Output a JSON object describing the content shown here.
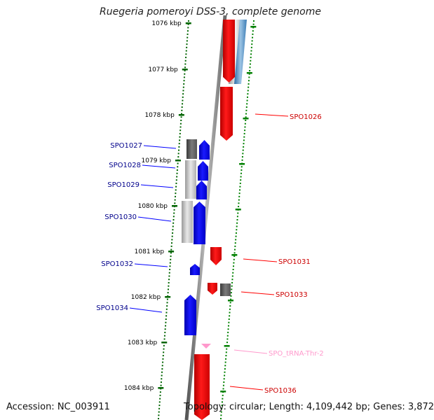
{
  "title": "Ruegeria pomeroyi DSS-3, complete genome",
  "accession": "Accession: NC_003911",
  "summary": "Topology: circular; Length: 4,109,442 bp; Genes: 3,872",
  "colors": {
    "forward_gene": "#0000ff",
    "reverse_gene": "#ff0000",
    "trna": "#ff99cc",
    "forward_label": "#00008b",
    "reverse_label": "#cc0000",
    "trna_label": "#ff99cc",
    "tick_left": "#006400",
    "tick_right": "#008000",
    "backbone": "#808080"
  },
  "ticks": [
    {
      "label": "1076 kbp"
    },
    {
      "label": "1077 kbp"
    },
    {
      "label": "1078 kbp"
    },
    {
      "label": "1079 kbp"
    },
    {
      "label": "1080 kbp"
    },
    {
      "label": "1081 kbp"
    },
    {
      "label": "1082 kbp"
    },
    {
      "label": "1083 kbp"
    },
    {
      "label": "1084 kbp"
    }
  ],
  "genes": [
    {
      "id": "SPO1026",
      "strand": "-",
      "type": "CDS"
    },
    {
      "id": "SPO1027",
      "strand": "+",
      "type": "CDS"
    },
    {
      "id": "SPO1028",
      "strand": "+",
      "type": "CDS"
    },
    {
      "id": "SPO1029",
      "strand": "+",
      "type": "CDS"
    },
    {
      "id": "SPO1030",
      "strand": "+",
      "type": "CDS"
    },
    {
      "id": "SPO1031",
      "strand": "-",
      "type": "CDS"
    },
    {
      "id": "SPO1032",
      "strand": "+",
      "type": "CDS"
    },
    {
      "id": "SPO1033",
      "strand": "-",
      "type": "CDS"
    },
    {
      "id": "SPO1034",
      "strand": "+",
      "type": "CDS"
    },
    {
      "id": "SPO_tRNA-Thr-2",
      "strand": "-",
      "type": "tRNA"
    },
    {
      "id": "SPO1036",
      "strand": "-",
      "type": "CDS"
    }
  ]
}
